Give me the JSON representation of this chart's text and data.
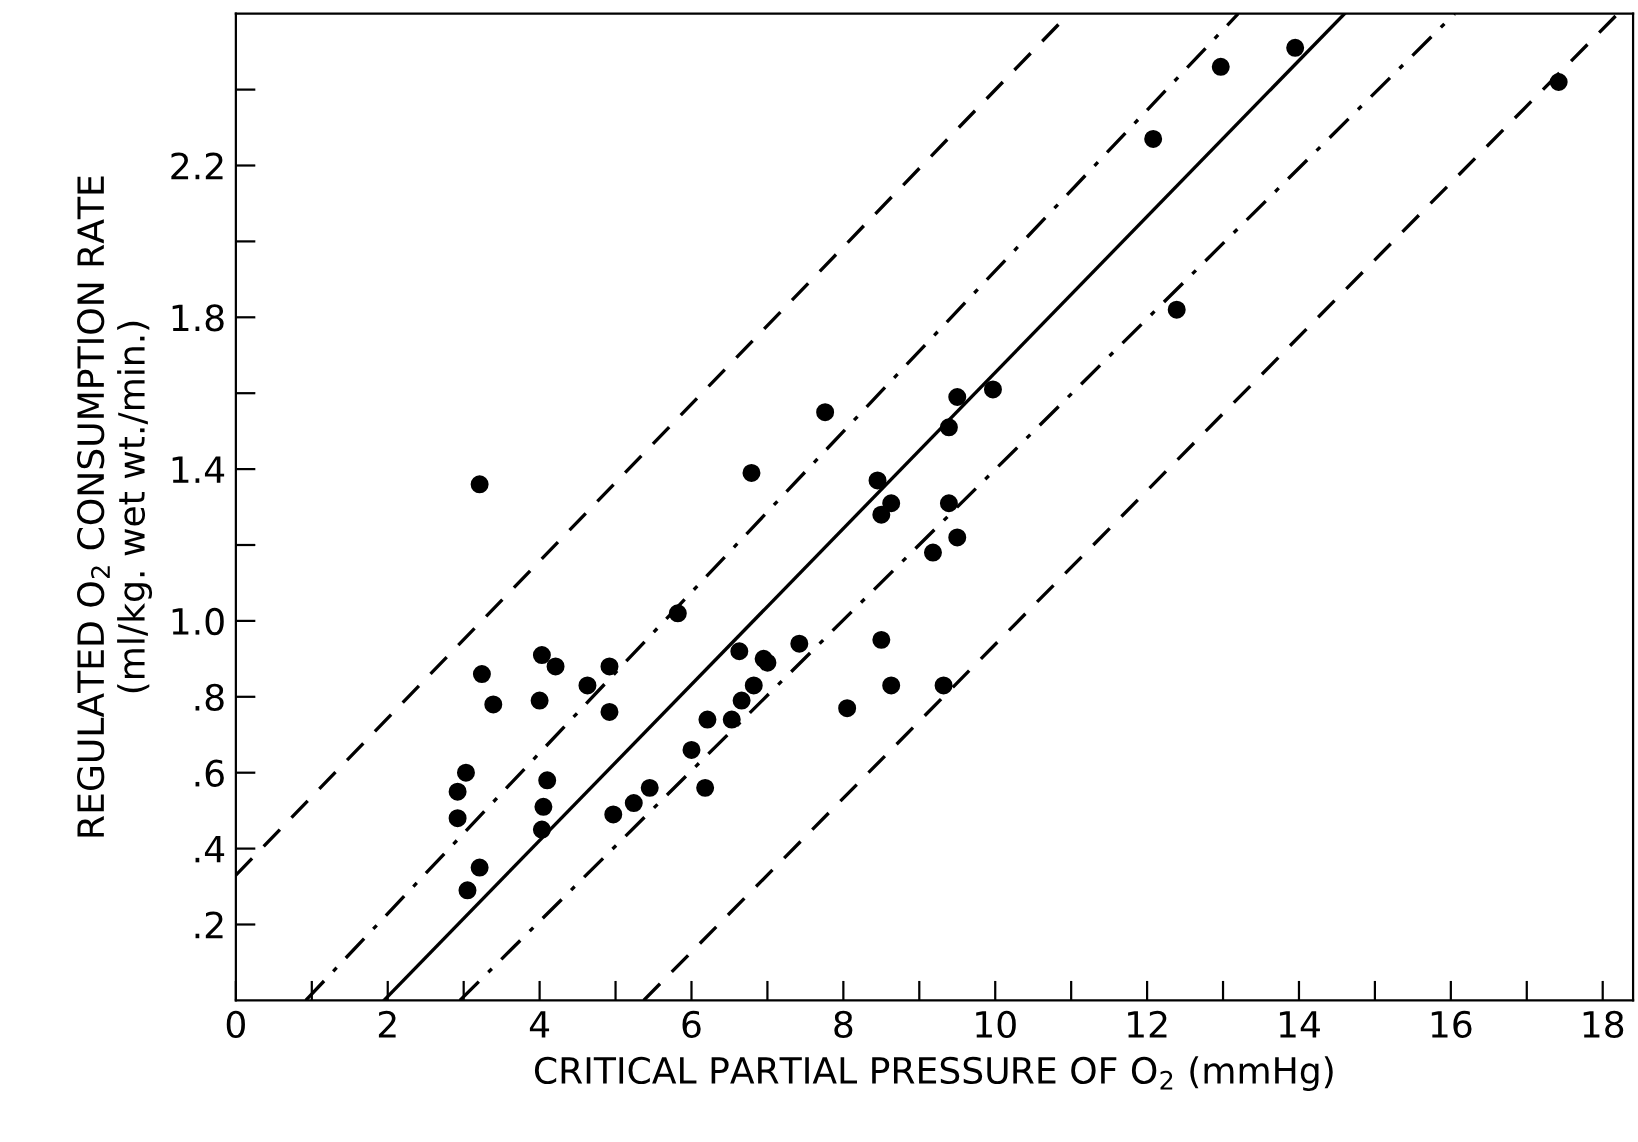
{
  "chart_data": {
    "type": "scatter",
    "xlabel": "CRITICAL PARTIAL PRESSURE OF O$_{2}$ (mmHg)",
    "ylabel": "REGULATED O$_{2}$ CONSUMPTION RATE\n(ml/kg. wet wt./min.)",
    "xlim": [
      0,
      18.4
    ],
    "ylim": [
      0,
      2.6
    ],
    "xticks": [
      0,
      {
        "value": 1,
        "label": null
      },
      2,
      {
        "value": 3,
        "label": null
      },
      4,
      {
        "value": 5,
        "label": null
      },
      6,
      {
        "value": 7,
        "label": null
      },
      8,
      {
        "value": 9,
        "label": null
      },
      10,
      {
        "value": 11,
        "label": null
      },
      12,
      {
        "value": 13,
        "label": null
      },
      14,
      {
        "value": 15,
        "label": null
      },
      16,
      {
        "value": 17,
        "label": null
      },
      18
    ],
    "yticks": [
      {
        "value": 0.2,
        "label": ".2"
      },
      {
        "value": 0.4,
        "label": ".4"
      },
      {
        "value": 0.6,
        "label": ".6"
      },
      {
        "value": 0.8,
        "label": ".8"
      },
      {
        "value": 1.0,
        "label": "1.0"
      },
      {
        "value": 1.2,
        "label": null
      },
      {
        "value": 1.4,
        "label": "1.4"
      },
      {
        "value": 1.6,
        "label": null
      },
      {
        "value": 1.8,
        "label": "1.8"
      },
      {
        "value": 2.0,
        "label": null
      },
      {
        "value": 2.2,
        "label": "2.2"
      },
      {
        "value": 2.4,
        "label": null
      }
    ],
    "grid": false,
    "legend": false,
    "marker": "circle",
    "series": [
      {
        "color": "#000000",
        "x": [
          3.21,
          6.79,
          7.76,
          8.45,
          8.63,
          8.5,
          9.18,
          13.95,
          12.97,
          12.08,
          17.42,
          12.39,
          9.5,
          9.97,
          9.39,
          9.39,
          9.5,
          5.82,
          3.24,
          4.03,
          4.21,
          4.92,
          4.63,
          3.39,
          4.0,
          4.92,
          6.63,
          6.95,
          7.0,
          7.42,
          6.82,
          6.66,
          6.53,
          6.21,
          6.0,
          6.18,
          5.45,
          5.24,
          4.97,
          4.1,
          4.05,
          4.03,
          3.03,
          2.92,
          2.92,
          3.21,
          3.05,
          8.05,
          8.5,
          8.63,
          9.32
        ],
        "values": [
          1.36,
          1.39,
          1.55,
          1.37,
          1.31,
          1.28,
          1.18,
          2.51,
          2.46,
          2.27,
          2.42,
          1.82,
          1.59,
          1.61,
          1.51,
          1.31,
          1.22,
          1.02,
          0.86,
          0.91,
          0.88,
          0.88,
          0.83,
          0.78,
          0.79,
          0.76,
          0.92,
          0.9,
          0.89,
          0.94,
          0.83,
          0.79,
          0.74,
          0.74,
          0.66,
          0.56,
          0.56,
          0.52,
          0.49,
          0.58,
          0.51,
          0.45,
          0.6,
          0.55,
          0.48,
          0.35,
          0.29,
          0.77,
          0.95,
          0.83,
          0.83
        ]
      },
      {
        "type": "line",
        "color": "#000000",
        "line_style": "solid",
        "marker": "none",
        "x": [
          1.95,
          14.6
        ],
        "values": [
          0,
          2.6
        ]
      },
      {
        "type": "line",
        "color": "#000000",
        "line_style": "dashdot",
        "marker": "none",
        "x": [
          0.92,
          13.2
        ],
        "values": [
          0,
          2.6
        ]
      },
      {
        "type": "line",
        "color": "#000000",
        "line_style": "dashdot",
        "marker": "none",
        "x": [
          2.95,
          16.05
        ],
        "values": [
          0,
          2.6
        ]
      },
      {
        "type": "line",
        "color": "#000000",
        "line_style": "dashed",
        "marker": "none",
        "x": [
          0,
          10.97
        ],
        "values": [
          0.33,
          2.6
        ]
      },
      {
        "type": "line",
        "color": "#000000",
        "line_style": "dashed",
        "marker": "none",
        "x": [
          5.37,
          18.2
        ],
        "values": [
          0,
          2.6
        ]
      }
    ]
  }
}
